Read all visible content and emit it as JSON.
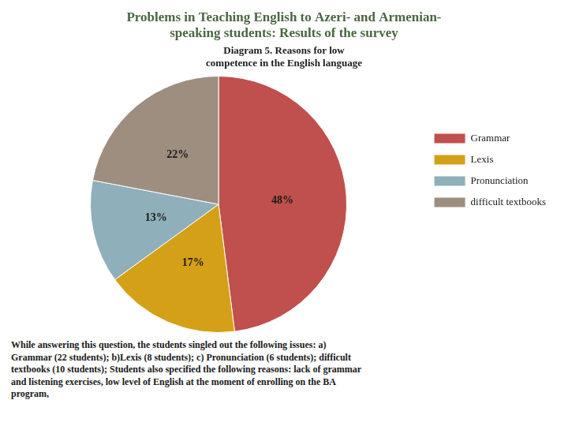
{
  "chart_data": {
    "type": "pie",
    "title": [
      "Problems in Teaching English to Azeri- and Armenian-",
      "speaking students: Results of the survey"
    ],
    "subtitle": [
      "Diagram 5. Reasons for low",
      "competence in the English language"
    ],
    "categories": [
      "Grammar",
      "Lexis",
      "Pronunciation",
      "difficult textbooks"
    ],
    "values": [
      48,
      17,
      13,
      22
    ],
    "value_labels": [
      "48%",
      "17%",
      "13%",
      "22%"
    ],
    "data_labels": true,
    "colors": [
      "#C0504D",
      "#D4A017",
      "#8FAFBA",
      "#9E8E80"
    ],
    "legend": "right",
    "annotations": [
      "While answering this question, the students singled out the following issues: a)\nGrammar (22 students); b)Lexis (8 students); c) Pronunciation (6 students); difficult\ntextbooks (10 students);  Students also specified the following reasons: lack of grammar\nand listening exercises, low level of English at the moment of enrolling on the BA\nprogram,"
    ]
  }
}
